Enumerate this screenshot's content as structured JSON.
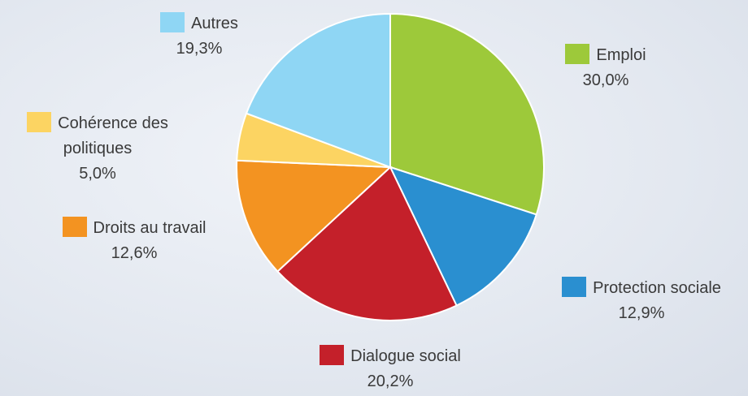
{
  "chart_data": {
    "type": "pie",
    "categories": [
      "Emploi",
      "Protection sociale",
      "Dialogue social",
      "Droits au travail",
      "Cohérence des politiques",
      "Autres"
    ],
    "values": [
      30.0,
      12.9,
      20.2,
      12.6,
      5.0,
      19.3
    ],
    "value_labels": [
      "30,0%",
      "12,9%",
      "20,2%",
      "12,6%",
      "5,0%",
      "19,3%"
    ],
    "colors": [
      "#9dc93a",
      "#2a8fd0",
      "#c4202a",
      "#f39321",
      "#fcd462",
      "#8fd6f4"
    ]
  }
}
